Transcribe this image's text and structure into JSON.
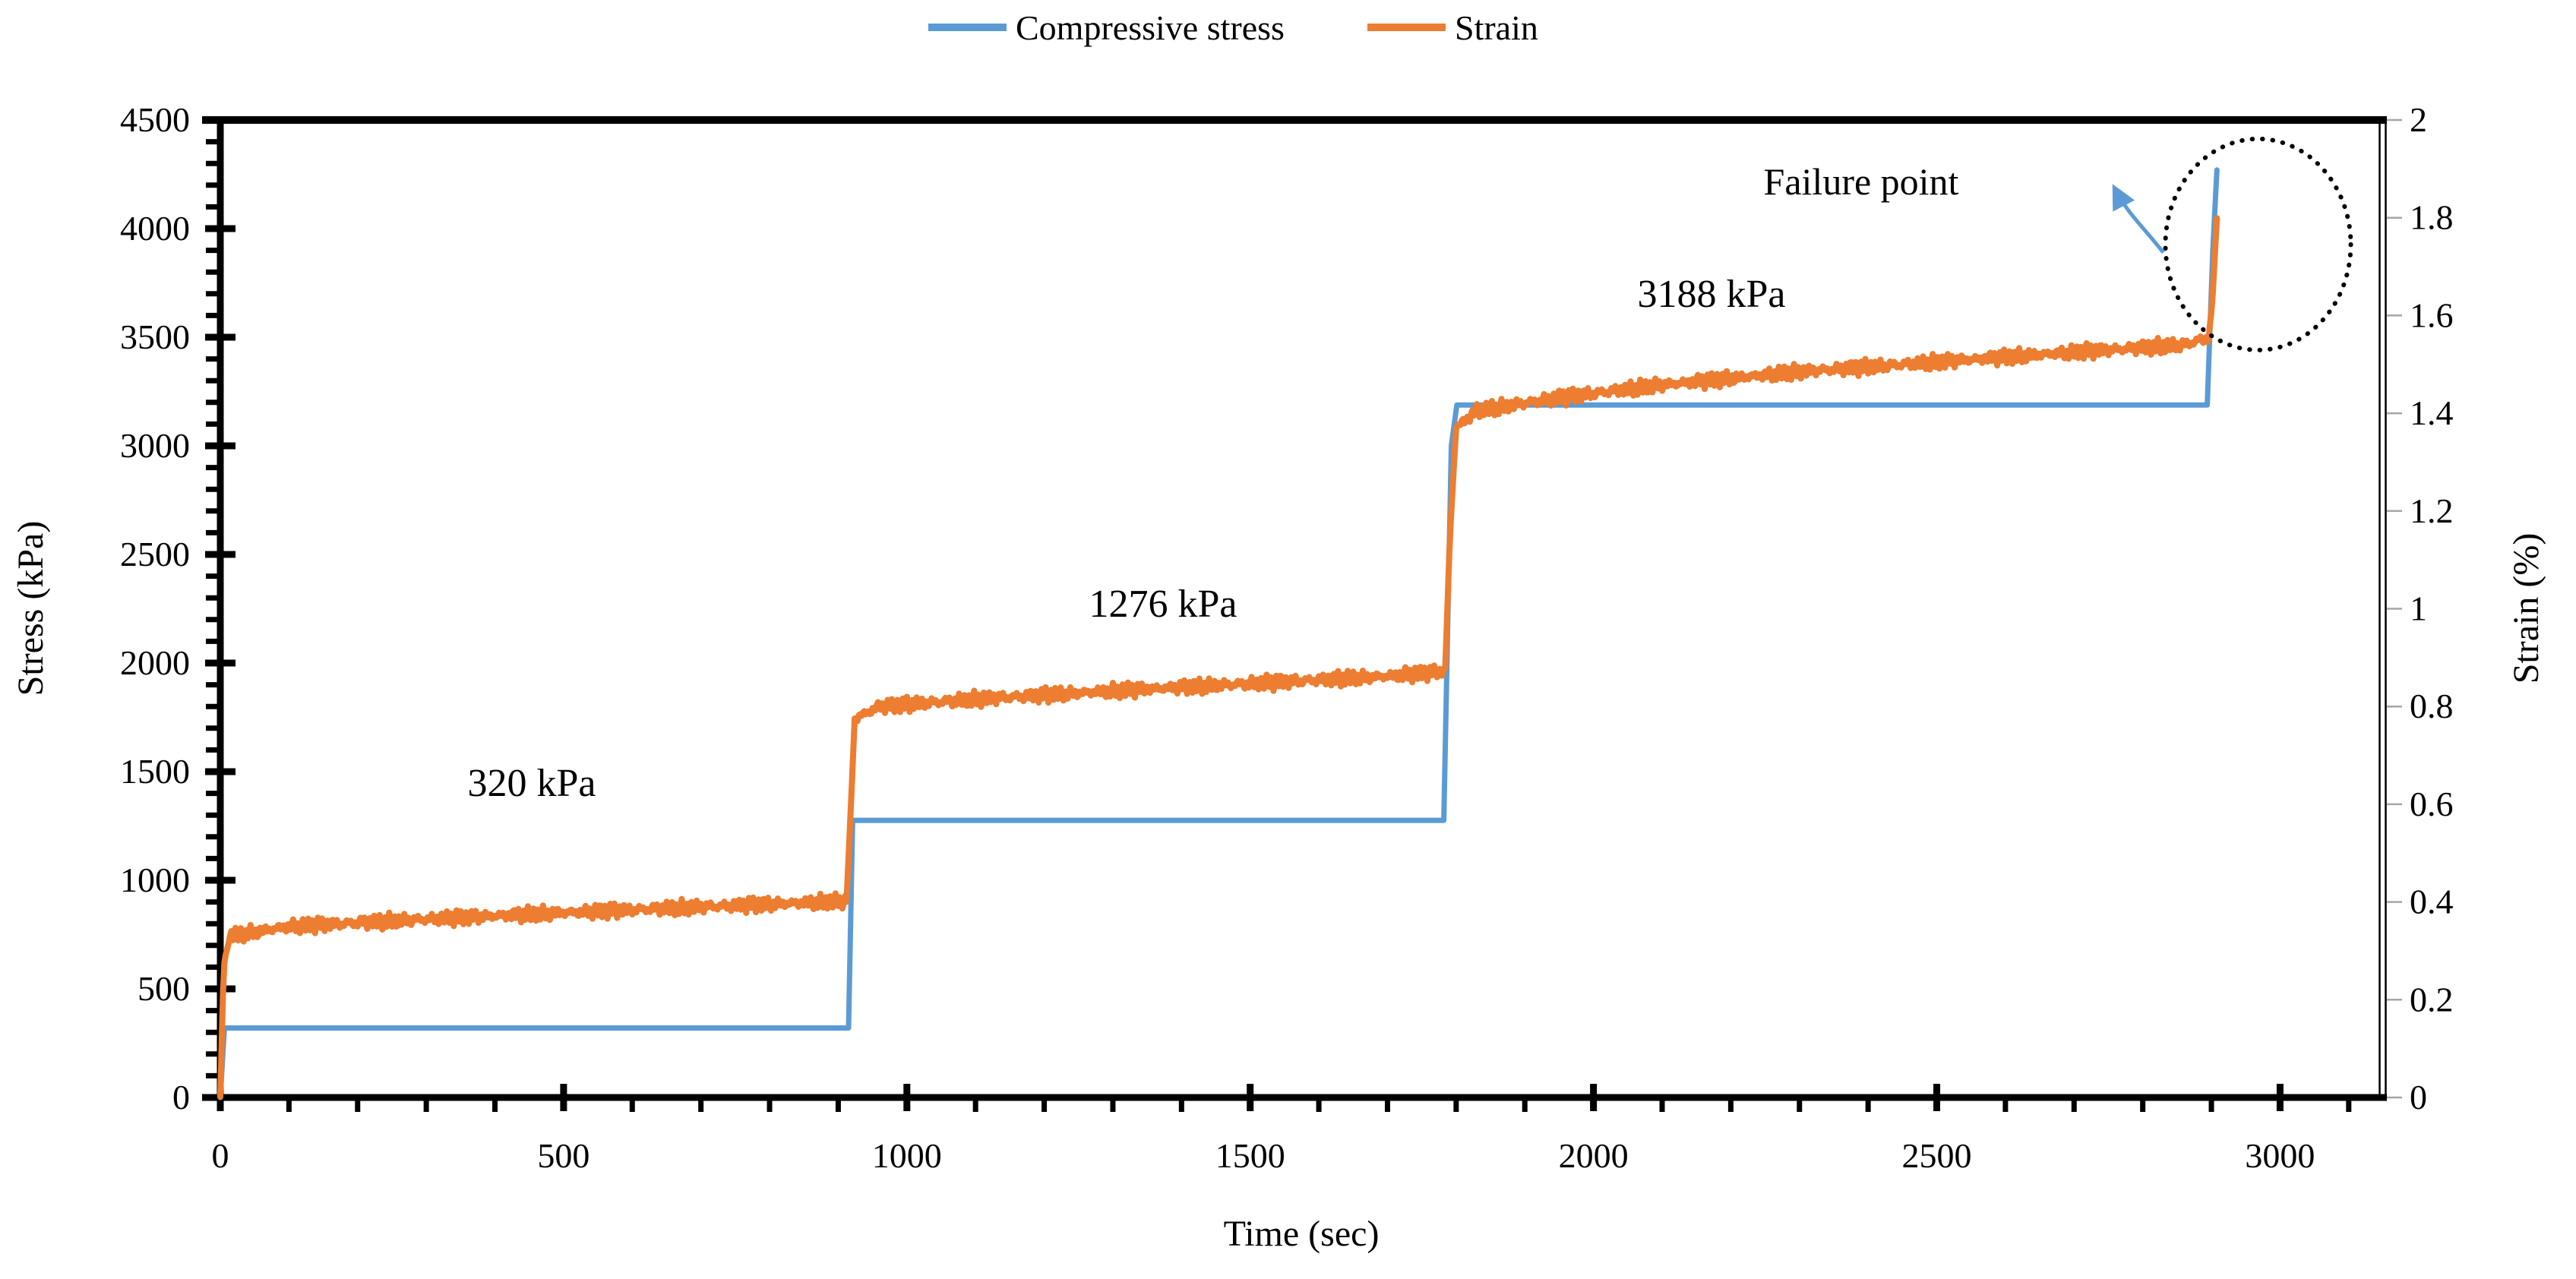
{
  "figure": {
    "background": "#FFFFFF"
  },
  "chart_data": {
    "type": "line",
    "title": "",
    "xlabel": "Time (sec)",
    "ylabel_left": "Stress (kPa)",
    "ylabel_right": "Strain (%)",
    "grid": false,
    "legend_position": "top-center",
    "x_axis": {
      "min": 0,
      "max": 3150,
      "major_tick": 500,
      "minor_tick": 100,
      "tick_labels": [
        "0",
        "500",
        "1000",
        "1500",
        "2000",
        "2500",
        "3000"
      ]
    },
    "y_axis_left": {
      "min": 0,
      "max": 4500,
      "major_tick": 500,
      "minor_tick": 100,
      "tick_labels": [
        "0",
        "500",
        "1000",
        "1500",
        "2000",
        "2500",
        "3000",
        "3500",
        "4000",
        "4500"
      ]
    },
    "y_axis_right": {
      "min": 0,
      "max": 2,
      "major_tick": 0.2,
      "tick_labels": [
        "0",
        "0.2",
        "0.4",
        "0.6",
        "0.8",
        "1",
        "1.2",
        "1.4",
        "1.6",
        "1.8",
        "2"
      ]
    },
    "legend": {
      "items": [
        {
          "label": "Compressive stress",
          "color": "#5B9BD5"
        },
        {
          "label": "Strain",
          "color": "#ED7D31"
        }
      ]
    },
    "series": [
      {
        "name": "Compressive stress",
        "axis": "left",
        "color": "#5B9BD5",
        "stroke_width": 7,
        "noise_amplitude": 0,
        "points": [
          [
            0,
            0
          ],
          [
            6,
            320
          ],
          [
            915,
            320
          ],
          [
            921,
            1276
          ],
          [
            1782,
            1276
          ],
          [
            1793,
            3000
          ],
          [
            1801,
            3188
          ],
          [
            2894,
            3188
          ],
          [
            2902,
            3900
          ],
          [
            2908,
            4270
          ]
        ]
      },
      {
        "name": "Strain",
        "axis": "right",
        "color": "#ED7D31",
        "stroke_width": 8,
        "noise_amplitude": 0.018,
        "points": [
          [
            0,
            0
          ],
          [
            5,
            0.27
          ],
          [
            14,
            0.33
          ],
          [
            100,
            0.35
          ],
          [
            300,
            0.365
          ],
          [
            500,
            0.378
          ],
          [
            700,
            0.39
          ],
          [
            912,
            0.402
          ],
          [
            917,
            0.55
          ],
          [
            924,
            0.775
          ],
          [
            960,
            0.8
          ],
          [
            1100,
            0.815
          ],
          [
            1300,
            0.832
          ],
          [
            1500,
            0.847
          ],
          [
            1700,
            0.862
          ],
          [
            1784,
            0.872
          ],
          [
            1791,
            1.15
          ],
          [
            1800,
            1.37
          ],
          [
            1830,
            1.405
          ],
          [
            1950,
            1.432
          ],
          [
            2100,
            1.458
          ],
          [
            2300,
            1.485
          ],
          [
            2500,
            1.505
          ],
          [
            2700,
            1.525
          ],
          [
            2860,
            1.54
          ],
          [
            2896,
            1.555
          ],
          [
            2901,
            1.62
          ],
          [
            2908,
            1.8
          ]
        ]
      }
    ],
    "annotations": {
      "stress_levels": [
        {
          "text": "320 kPa",
          "t": 454,
          "stress": 1390
        },
        {
          "text": "1276 kPa",
          "t": 1373,
          "stress": 2213
        },
        {
          "text": "3188 kPa",
          "t": 2172,
          "stress": 3640
        }
      ],
      "failure": {
        "text": "Failure point",
        "t": 2390,
        "stress": 4158
      },
      "failure_ellipse": {
        "t": 2968,
        "stress": 3927,
        "rt": 135,
        "rstress": 486
      },
      "failure_arrow": {
        "from_t": 2830,
        "from_stress": 3890,
        "c1_t": 2800,
        "c1_stress": 4010,
        "c2_t": 2778,
        "c2_stress": 4070,
        "to_t": 2760,
        "to_stress": 4180
      }
    },
    "colors": {
      "axis": "#000000",
      "right_tick": "#A6A6A6",
      "blue": "#5B9BD5",
      "orange": "#ED7D31"
    }
  }
}
